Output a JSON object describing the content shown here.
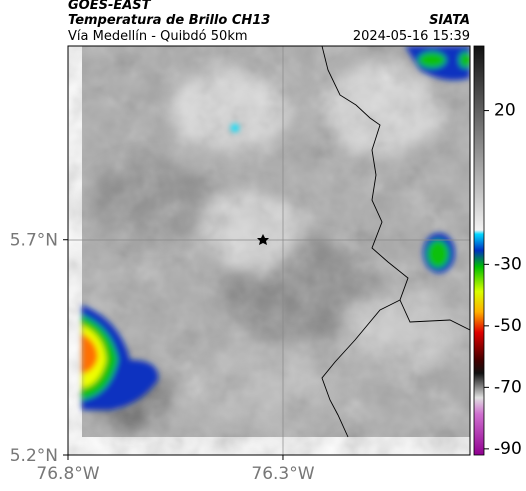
{
  "header": {
    "source": "GOES-EAST",
    "title": "Temperatura de Brillo CH13",
    "agency": "SIATA",
    "subtitle": "Vía Medellín - Quibdó 50km",
    "timestamp": "2024-05-16 15:39"
  },
  "map": {
    "latlim": [
      5.2,
      6.15
    ],
    "lonlim": [
      -76.8,
      -75.865
    ],
    "lat_ticks": [
      {
        "value": 5.7,
        "label": "5.7°N"
      },
      {
        "value": 5.2,
        "label": "5.2°N"
      }
    ],
    "lon_ticks": [
      {
        "value": -76.8,
        "label": "76.8°W"
      },
      {
        "value": -76.3,
        "label": "76.3°W"
      }
    ]
  },
  "colorbar": {
    "lim": [
      -92,
      41
    ],
    "ticks": [
      20,
      -30,
      -50,
      -70,
      -90
    ]
  }
}
